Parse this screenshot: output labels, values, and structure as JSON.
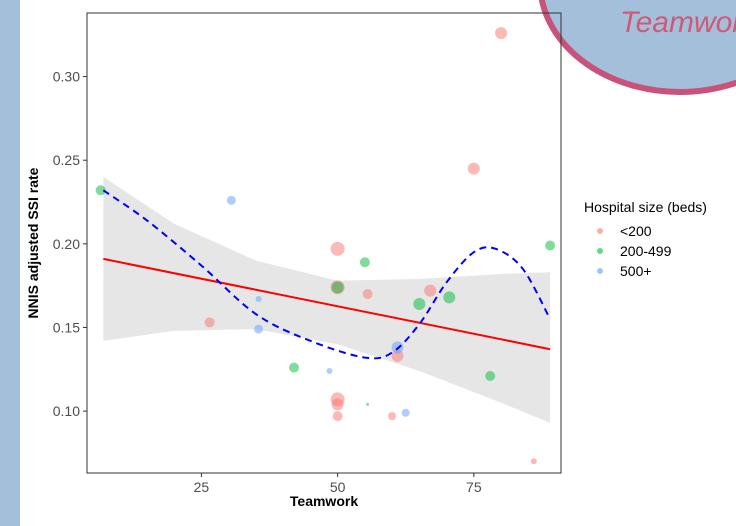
{
  "chart_data": {
    "type": "scatter",
    "title": "",
    "xlabel": "Teamwork",
    "ylabel": "NNIS adjusted SSI rate",
    "xlim": [
      4,
      91
    ],
    "ylim": [
      0.063,
      0.338
    ],
    "x_ticks": [
      25,
      50,
      75
    ],
    "y_ticks": [
      0.1,
      0.15,
      0.2,
      0.25,
      0.3
    ],
    "y_tick_labels": [
      "0.10",
      "0.15",
      "0.20",
      "0.25",
      "0.30"
    ],
    "grid": false,
    "legend": {
      "title": "Hospital size (beds)",
      "position": "right",
      "entries": [
        {
          "label": "<200",
          "color": "#f8766d"
        },
        {
          "label": "200-499",
          "color": "#00ba38"
        },
        {
          "label": "500+",
          "color": "#619cff"
        }
      ]
    },
    "series": [
      {
        "name": "<200",
        "color": "#f8766d",
        "points": [
          {
            "x": 80,
            "y": 0.326,
            "size": 6
          },
          {
            "x": 75,
            "y": 0.245,
            "size": 6
          },
          {
            "x": 50,
            "y": 0.197,
            "size": 7
          },
          {
            "x": 50,
            "y": 0.174,
            "size": 7
          },
          {
            "x": 55.5,
            "y": 0.17,
            "size": 5
          },
          {
            "x": 67,
            "y": 0.172,
            "size": 6
          },
          {
            "x": 26.5,
            "y": 0.153,
            "size": 5
          },
          {
            "x": 61,
            "y": 0.133,
            "size": 6
          },
          {
            "x": 50,
            "y": 0.107,
            "size": 7
          },
          {
            "x": 50,
            "y": 0.104,
            "size": 6
          },
          {
            "x": 50,
            "y": 0.097,
            "size": 5
          },
          {
            "x": 60,
            "y": 0.097,
            "size": 4
          },
          {
            "x": 86,
            "y": 0.07,
            "size": 3
          }
        ]
      },
      {
        "name": "200-499",
        "color": "#00ba38",
        "points": [
          {
            "x": 6.5,
            "y": 0.232,
            "size": 5
          },
          {
            "x": 89,
            "y": 0.199,
            "size": 5
          },
          {
            "x": 55,
            "y": 0.189,
            "size": 5
          },
          {
            "x": 50,
            "y": 0.174,
            "size": 6
          },
          {
            "x": 70.5,
            "y": 0.168,
            "size": 6
          },
          {
            "x": 65,
            "y": 0.164,
            "size": 6
          },
          {
            "x": 42,
            "y": 0.126,
            "size": 5
          },
          {
            "x": 78,
            "y": 0.121,
            "size": 5
          },
          {
            "x": 55.5,
            "y": 0.104,
            "size": 1.5
          }
        ]
      },
      {
        "name": "500+",
        "color": "#619cff",
        "points": [
          {
            "x": 30.5,
            "y": 0.226,
            "size": 4.5
          },
          {
            "x": 35.5,
            "y": 0.167,
            "size": 3
          },
          {
            "x": 35.5,
            "y": 0.149,
            "size": 4.5
          },
          {
            "x": 61,
            "y": 0.138,
            "size": 6
          },
          {
            "x": 48.5,
            "y": 0.124,
            "size": 3
          },
          {
            "x": 62.5,
            "y": 0.099,
            "size": 4
          }
        ]
      }
    ],
    "linear_fit": {
      "color": "#ff0000",
      "x": [
        7,
        89
      ],
      "y": [
        0.191,
        0.137
      ]
    },
    "confidence_band": {
      "color": "#e6e6e6",
      "x": [
        7,
        20,
        35,
        50,
        65,
        80,
        89
      ],
      "lower": [
        0.142,
        0.148,
        0.149,
        0.14,
        0.124,
        0.105,
        0.093
      ],
      "upper": [
        0.24,
        0.212,
        0.19,
        0.178,
        0.179,
        0.182,
        0.183
      ]
    },
    "smooth_fit": {
      "color": "#0000ff",
      "style": "dashed",
      "x": [
        7,
        15,
        25,
        35,
        45,
        55,
        60,
        65,
        70,
        75,
        79,
        84,
        89
      ],
      "y": [
        0.232,
        0.214,
        0.187,
        0.158,
        0.142,
        0.132,
        0.135,
        0.152,
        0.177,
        0.195,
        0.197,
        0.185,
        0.155
      ]
    }
  },
  "decoration": {
    "fill": "#a4bfd9",
    "stroke": "#c9527a",
    "text": "Teamwork enhancement"
  }
}
